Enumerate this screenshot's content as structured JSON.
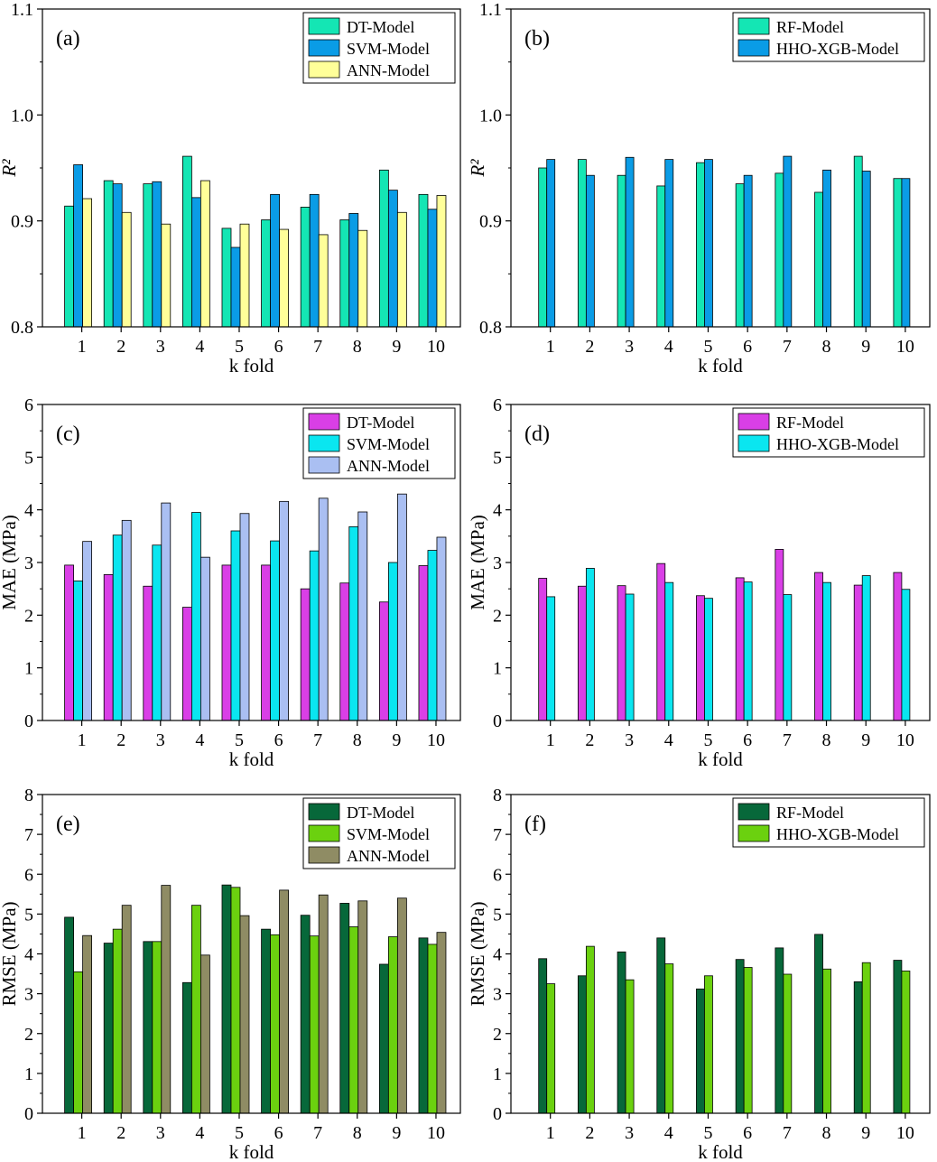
{
  "chart_data": [
    {
      "id": "a",
      "type": "bar",
      "panel_label": "(a)",
      "categories": [
        "1",
        "2",
        "3",
        "4",
        "5",
        "6",
        "7",
        "8",
        "9",
        "10"
      ],
      "xlabel": "k fold",
      "ylabel": "R²",
      "ylim": [
        0.8,
        1.1
      ],
      "yticks": [
        "0.8",
        "0.9",
        "1.0",
        "1.1"
      ],
      "legend": "top-right",
      "grid": false,
      "series": [
        {
          "name": "DT-Model",
          "color": "#14e6b4",
          "values": [
            0.914,
            0.938,
            0.935,
            0.961,
            0.893,
            0.901,
            0.913,
            0.901,
            0.948,
            0.925
          ]
        },
        {
          "name": "SVM-Model",
          "color": "#0a9ce6",
          "values": [
            0.953,
            0.935,
            0.937,
            0.922,
            0.875,
            0.925,
            0.925,
            0.907,
            0.929,
            0.911
          ]
        },
        {
          "name": "ANN-Model",
          "color": "#ffff99",
          "values": [
            0.921,
            0.908,
            0.897,
            0.938,
            0.897,
            0.892,
            0.887,
            0.891,
            0.908,
            0.924
          ]
        }
      ]
    },
    {
      "id": "b",
      "type": "bar",
      "panel_label": "(b)",
      "categories": [
        "1",
        "2",
        "3",
        "4",
        "5",
        "6",
        "7",
        "8",
        "9",
        "10"
      ],
      "xlabel": "k fold",
      "ylabel": "R²",
      "ylim": [
        0.8,
        1.1
      ],
      "yticks": [
        "0.8",
        "0.9",
        "1.0",
        "1.1"
      ],
      "legend": "top-right",
      "grid": false,
      "series": [
        {
          "name": "RF-Model",
          "color": "#14e6b4",
          "values": [
            0.95,
            0.958,
            0.943,
            0.933,
            0.955,
            0.935,
            0.945,
            0.927,
            0.961,
            0.94
          ]
        },
        {
          "name": "HHO-XGB-Model",
          "color": "#0a9ce6",
          "values": [
            0.958,
            0.943,
            0.96,
            0.958,
            0.958,
            0.943,
            0.961,
            0.948,
            0.947,
            0.94
          ]
        }
      ]
    },
    {
      "id": "c",
      "type": "bar",
      "panel_label": "(c)",
      "categories": [
        "1",
        "2",
        "3",
        "4",
        "5",
        "6",
        "7",
        "8",
        "9",
        "10"
      ],
      "xlabel": "k fold",
      "ylabel": "MAE (MPa)",
      "ylim": [
        0,
        6
      ],
      "yticks": [
        "0",
        "1",
        "2",
        "3",
        "4",
        "5",
        "6"
      ],
      "legend": "top-right",
      "grid": false,
      "series": [
        {
          "name": "DT-Model",
          "color": "#d93fe6",
          "values": [
            2.95,
            2.77,
            2.55,
            2.15,
            2.95,
            2.95,
            2.5,
            2.61,
            2.25,
            2.94
          ]
        },
        {
          "name": "SVM-Model",
          "color": "#0ae6f0",
          "values": [
            2.65,
            3.52,
            3.33,
            3.95,
            3.6,
            3.41,
            3.22,
            3.68,
            3.0,
            3.23
          ]
        },
        {
          "name": "ANN-Model",
          "color": "#aabff2",
          "values": [
            3.4,
            3.8,
            4.13,
            3.1,
            3.93,
            4.16,
            4.22,
            3.96,
            4.3,
            3.48
          ]
        }
      ]
    },
    {
      "id": "d",
      "type": "bar",
      "panel_label": "(d)",
      "categories": [
        "1",
        "2",
        "3",
        "4",
        "5",
        "6",
        "7",
        "8",
        "9",
        "10"
      ],
      "xlabel": "k fold",
      "ylabel": "MAE (MPa)",
      "ylim": [
        0,
        6
      ],
      "yticks": [
        "0",
        "1",
        "2",
        "3",
        "4",
        "5",
        "6"
      ],
      "legend": "top-right",
      "grid": false,
      "series": [
        {
          "name": "RF-Model",
          "color": "#d93fe6",
          "values": [
            2.7,
            2.55,
            2.56,
            2.98,
            2.37,
            2.71,
            3.25,
            2.81,
            2.57,
            2.81
          ]
        },
        {
          "name": "HHO-XGB-Model",
          "color": "#0ae6f0",
          "values": [
            2.35,
            2.89,
            2.4,
            2.62,
            2.32,
            2.63,
            2.39,
            2.62,
            2.75,
            2.49
          ]
        }
      ]
    },
    {
      "id": "e",
      "type": "bar",
      "panel_label": "(e)",
      "categories": [
        "1",
        "2",
        "3",
        "4",
        "5",
        "6",
        "7",
        "8",
        "9",
        "10"
      ],
      "xlabel": "k fold",
      "ylabel": "RMSE (MPa)",
      "ylim": [
        0,
        8
      ],
      "yticks": [
        "0",
        "1",
        "2",
        "3",
        "4",
        "5",
        "6",
        "7",
        "8"
      ],
      "legend": "top-right",
      "grid": false,
      "series": [
        {
          "name": "DT-Model",
          "color": "#07683a",
          "values": [
            4.92,
            4.27,
            4.31,
            3.28,
            5.73,
            4.62,
            4.97,
            5.27,
            3.74,
            4.4
          ]
        },
        {
          "name": "SVM-Model",
          "color": "#6bd10f",
          "values": [
            3.55,
            4.62,
            4.31,
            5.22,
            5.67,
            4.48,
            4.45,
            4.68,
            4.43,
            4.24
          ]
        },
        {
          "name": "ANN-Model",
          "color": "#8f8c64",
          "values": [
            4.46,
            5.22,
            5.72,
            3.97,
            4.96,
            5.6,
            5.48,
            5.33,
            5.4,
            4.54
          ]
        }
      ]
    },
    {
      "id": "f",
      "type": "bar",
      "panel_label": "(f)",
      "categories": [
        "1",
        "2",
        "3",
        "4",
        "5",
        "6",
        "7",
        "8",
        "9",
        "10"
      ],
      "xlabel": "k fold",
      "ylabel": "RMSE (MPa)",
      "ylim": [
        0,
        8
      ],
      "yticks": [
        "0",
        "1",
        "2",
        "3",
        "4",
        "5",
        "6",
        "7",
        "8"
      ],
      "legend": "top-right",
      "grid": false,
      "series": [
        {
          "name": "RF-Model",
          "color": "#07683a",
          "values": [
            3.88,
            3.45,
            4.05,
            4.4,
            3.12,
            3.86,
            4.15,
            4.49,
            3.3,
            3.84
          ]
        },
        {
          "name": "HHO-XGB-Model",
          "color": "#6bd10f",
          "values": [
            3.25,
            4.19,
            3.35,
            3.75,
            3.45,
            3.66,
            3.49,
            3.62,
            3.78,
            3.57
          ]
        }
      ]
    }
  ]
}
